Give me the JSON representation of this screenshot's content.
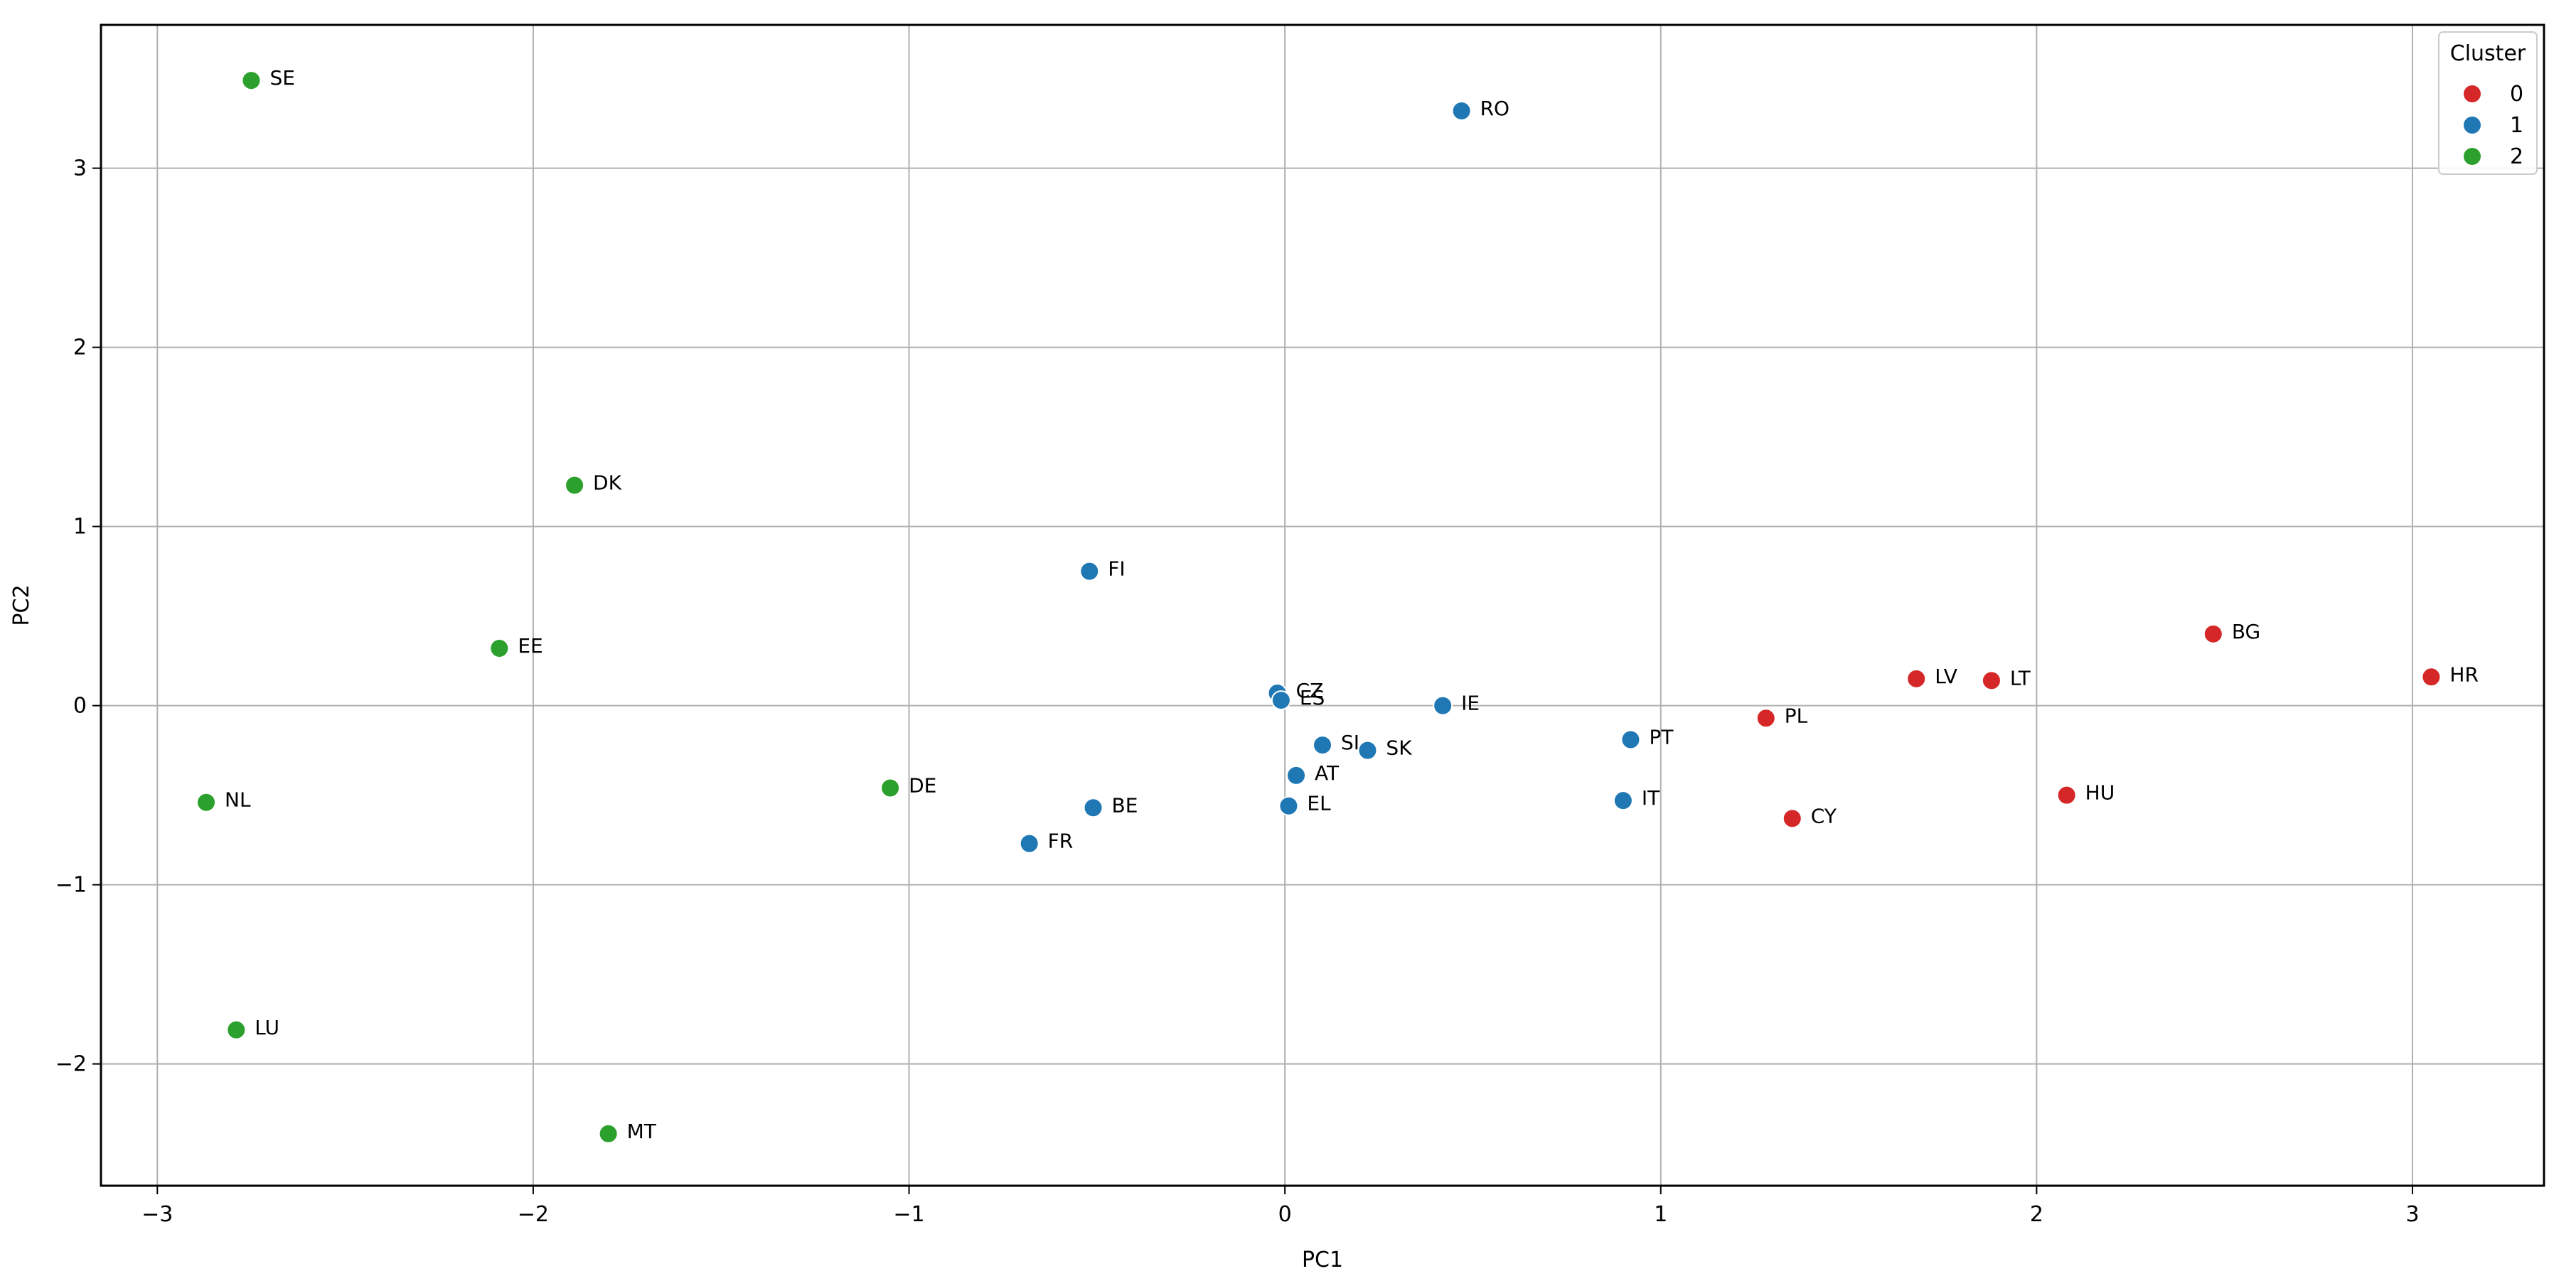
{
  "chart_data": {
    "type": "scatter",
    "title": "",
    "xlabel": "PC1",
    "ylabel": "PC2",
    "xlim": [
      -3.15,
      3.35
    ],
    "ylim": [
      -2.68,
      3.8
    ],
    "xticks": [
      -3,
      -2,
      -1,
      0,
      1,
      2,
      3
    ],
    "yticks": [
      -2,
      -1,
      0,
      1,
      2,
      3
    ],
    "xtick_labels": [
      "−3",
      "−2",
      "−1",
      "0",
      "1",
      "2",
      "3"
    ],
    "ytick_labels": [
      "−2",
      "−1",
      "0",
      "1",
      "2",
      "3"
    ],
    "grid": true,
    "legend": {
      "title": "Cluster",
      "placement": "top-right",
      "entries": [
        {
          "label": "0",
          "color": "#d62728"
        },
        {
          "label": "1",
          "color": "#1f77b4"
        },
        {
          "label": "2",
          "color": "#2ca02c"
        }
      ]
    },
    "series": [
      {
        "name": "0",
        "color": "#d62728",
        "points": [
          {
            "label": "PL",
            "x": 1.28,
            "y": -0.07
          },
          {
            "label": "LV",
            "x": 1.68,
            "y": 0.15
          },
          {
            "label": "LT",
            "x": 1.88,
            "y": 0.14
          },
          {
            "label": "BG",
            "x": 2.47,
            "y": 0.4
          },
          {
            "label": "HR",
            "x": 3.05,
            "y": 0.16
          },
          {
            "label": "HU",
            "x": 2.08,
            "y": -0.5
          },
          {
            "label": "CY",
            "x": 1.35,
            "y": -0.63
          }
        ]
      },
      {
        "name": "1",
        "color": "#1f77b4",
        "points": [
          {
            "label": "RO",
            "x": 0.47,
            "y": 3.32
          },
          {
            "label": "FI",
            "x": -0.52,
            "y": 0.75
          },
          {
            "label": "CZ",
            "x": -0.02,
            "y": 0.07
          },
          {
            "label": "ES",
            "x": -0.01,
            "y": 0.03
          },
          {
            "label": "IE",
            "x": 0.42,
            "y": 0.0
          },
          {
            "label": "SI",
            "x": 0.1,
            "y": -0.22
          },
          {
            "label": "SK",
            "x": 0.22,
            "y": -0.25
          },
          {
            "label": "AT",
            "x": 0.03,
            "y": -0.39
          },
          {
            "label": "EL",
            "x": 0.01,
            "y": -0.56
          },
          {
            "label": "PT",
            "x": 0.92,
            "y": -0.19
          },
          {
            "label": "IT",
            "x": 0.9,
            "y": -0.53
          },
          {
            "label": "BE",
            "x": -0.51,
            "y": -0.57
          },
          {
            "label": "FR",
            "x": -0.68,
            "y": -0.77
          }
        ]
      },
      {
        "name": "2",
        "color": "#2ca02c",
        "points": [
          {
            "label": "SE",
            "x": -2.75,
            "y": 3.49
          },
          {
            "label": "DK",
            "x": -1.89,
            "y": 1.23
          },
          {
            "label": "EE",
            "x": -2.09,
            "y": 0.32
          },
          {
            "label": "NL",
            "x": -2.87,
            "y": -0.54
          },
          {
            "label": "DE",
            "x": -1.05,
            "y": -0.46
          },
          {
            "label": "LU",
            "x": -2.79,
            "y": -1.81
          },
          {
            "label": "MT",
            "x": -1.8,
            "y": -2.39
          }
        ]
      }
    ]
  }
}
